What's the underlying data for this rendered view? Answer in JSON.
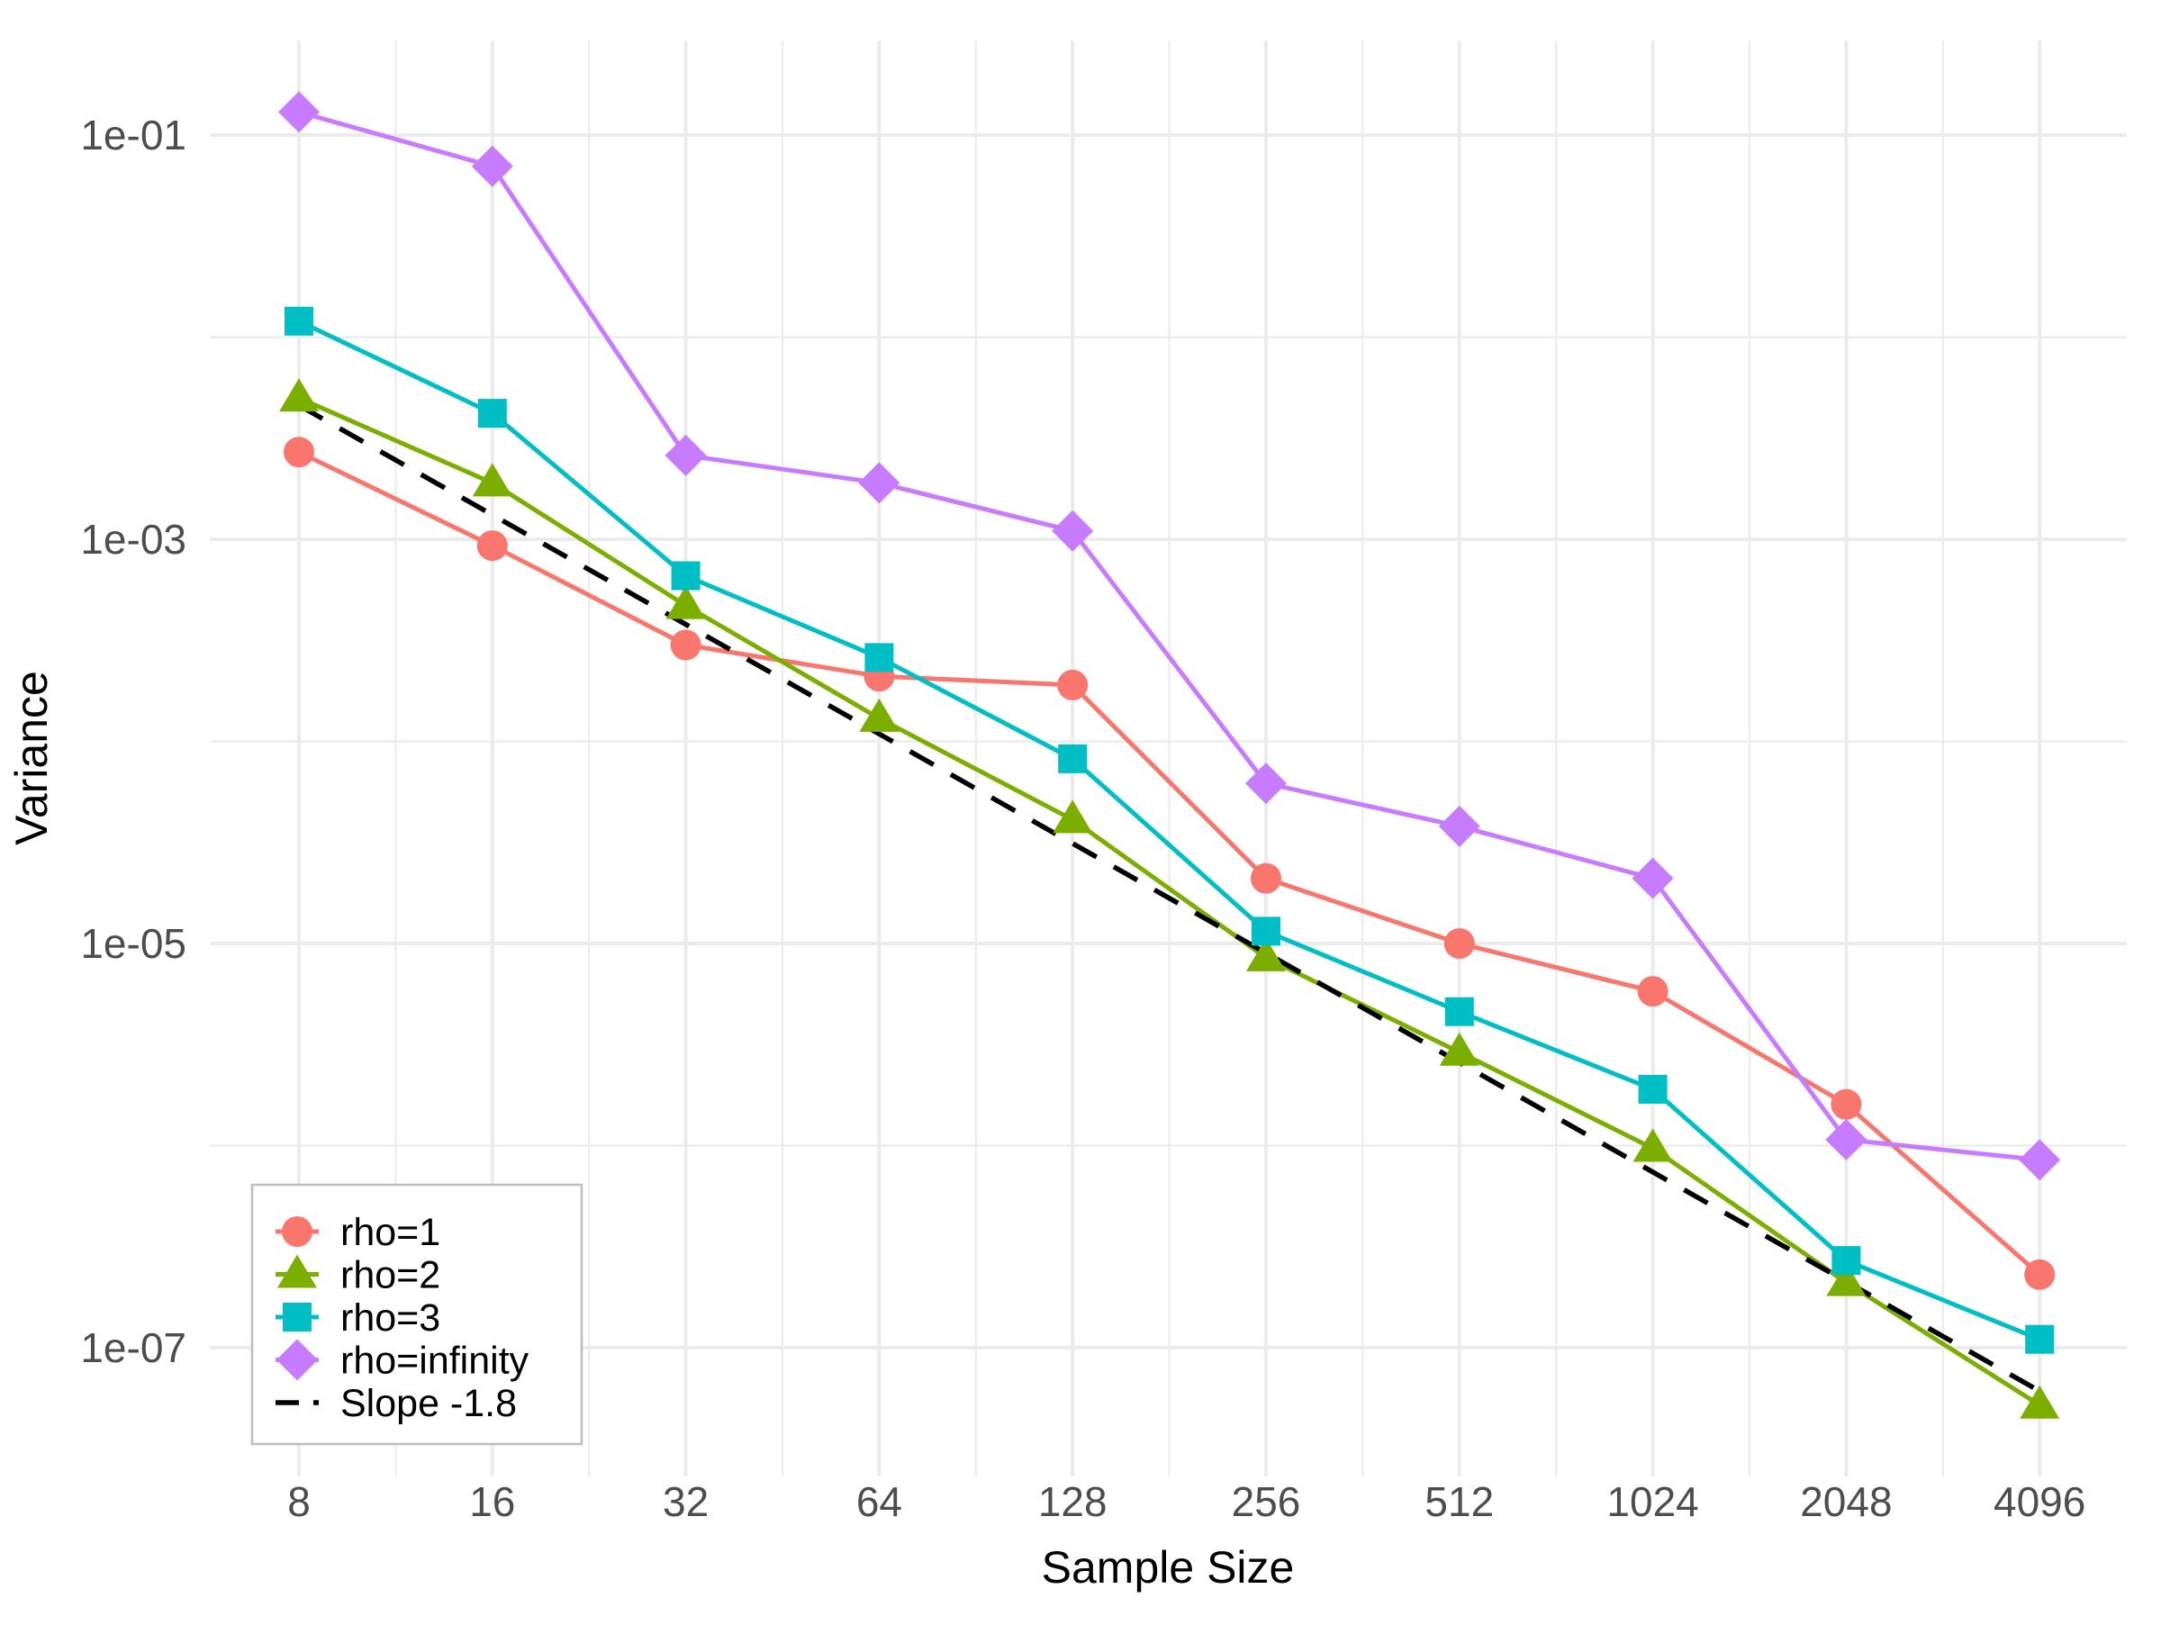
{
  "chart_data": {
    "type": "line",
    "title": "",
    "xlabel": "Sample Size",
    "ylabel": "Variance",
    "x_scale": "log2",
    "y_scale": "log10",
    "x": [
      8,
      16,
      32,
      64,
      128,
      256,
      512,
      1024,
      2048,
      4096
    ],
    "x_tick_labels": [
      "8",
      "16",
      "32",
      "64",
      "128",
      "256",
      "512",
      "1024",
      "2048",
      "4096"
    ],
    "y_ticks": [
      0.1,
      0.001,
      1e-05,
      1e-07
    ],
    "y_tick_labels": [
      "1e-01",
      "1e-03",
      "1e-05",
      "1e-07"
    ],
    "y_minor_ticks": [
      0.01,
      0.0001,
      1e-06
    ],
    "x_range": [
      8,
      4096
    ],
    "y_range": [
      2.3e-08,
      0.29
    ],
    "grid": "on",
    "legend_position": "bottom-left-inside",
    "series": [
      {
        "name": "rho=1",
        "color": "#F8766D",
        "marker": "circle",
        "values": [
          0.0027,
          0.00093,
          0.0003,
          0.00021,
          0.00019,
          2.1e-05,
          1e-05,
          5.8e-06,
          1.6e-06,
          2.3e-07
        ]
      },
      {
        "name": "rho=2",
        "color": "#7CAE00",
        "marker": "triangle",
        "values": [
          0.005,
          0.0019,
          0.00047,
          0.00013,
          4.1e-05,
          8.5e-06,
          2.9e-06,
          9.7e-07,
          2.1e-07,
          5.2e-08
        ]
      },
      {
        "name": "rho=3",
        "color": "#00BFC4",
        "marker": "square",
        "values": [
          0.012,
          0.0042,
          0.00066,
          0.00026,
          8.2e-05,
          1.15e-05,
          4.6e-06,
          1.9e-06,
          2.7e-07,
          1.1e-07
        ]
      },
      {
        "name": "rho=infinity",
        "color": "#C77CFF",
        "marker": "diamond",
        "values": [
          0.13,
          0.07,
          0.0026,
          0.0019,
          0.0011,
          6.2e-05,
          3.8e-05,
          2.1e-05,
          1.07e-06,
          8.5e-07
        ]
      }
    ],
    "reference_line": {
      "name": "Slope -1.8",
      "color": "#000000",
      "style": "dashed",
      "slope": -1.8,
      "start_x": 8,
      "start_y": 0.0046,
      "end_x": 4096,
      "end_y": 6.1e-08
    }
  },
  "style_colors": {
    "background": "#FFFFFF",
    "grid": "#EBEBEB",
    "tick_label": "#4D4D4D",
    "axis_title": "#000000",
    "legend_text": "#000000",
    "legend_border": "#BDBDBD"
  }
}
